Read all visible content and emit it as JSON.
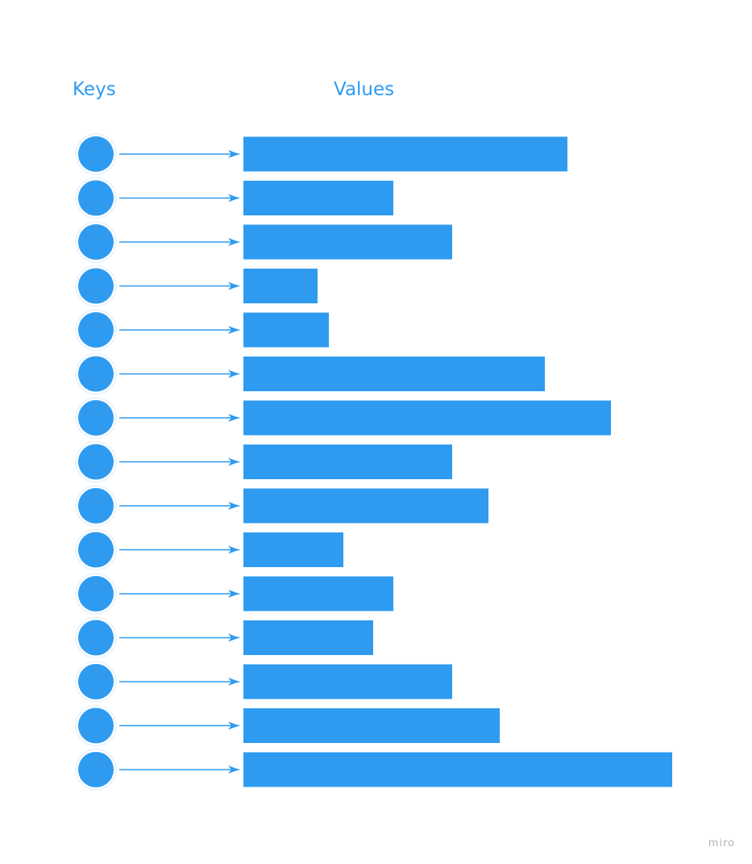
{
  "headings": {
    "keys": "Keys",
    "values": "Values"
  },
  "watermark": "miro",
  "colors": {
    "accent": "#2e9bf0",
    "watermark": "#b0b4b8"
  },
  "rows": [
    {
      "value_fraction": 0.756
    },
    {
      "value_fraction": 0.35
    },
    {
      "value_fraction": 0.487
    },
    {
      "value_fraction": 0.173
    },
    {
      "value_fraction": 0.199
    },
    {
      "value_fraction": 0.703
    },
    {
      "value_fraction": 0.857
    },
    {
      "value_fraction": 0.487
    },
    {
      "value_fraction": 0.571
    },
    {
      "value_fraction": 0.233
    },
    {
      "value_fraction": 0.35
    },
    {
      "value_fraction": 0.303
    },
    {
      "value_fraction": 0.487
    },
    {
      "value_fraction": 0.598
    },
    {
      "value_fraction": 1.0
    }
  ]
}
